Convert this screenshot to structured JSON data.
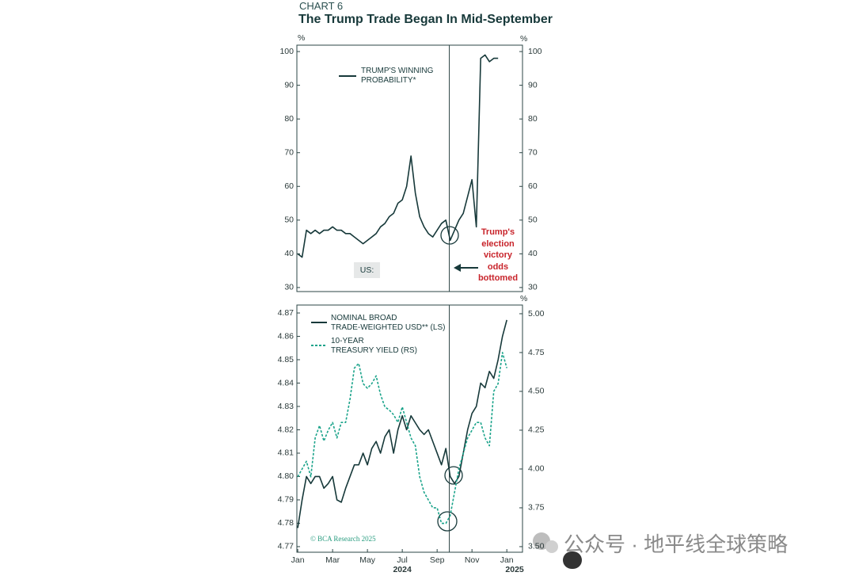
{
  "header": {
    "label": "CHART 6",
    "title": "The Trump Trade Began In Mid-September"
  },
  "chart_data": [
    {
      "type": "line",
      "y_unit": "%",
      "y2_unit": "%",
      "x": [
        0,
        0.25,
        0.5,
        0.75,
        1,
        1.25,
        1.5,
        1.75,
        2,
        2.25,
        2.5,
        2.75,
        3,
        3.25,
        3.5,
        3.75,
        4,
        4.25,
        4.5,
        4.75,
        5,
        5.25,
        5.5,
        5.75,
        6,
        6.25,
        6.5,
        6.75,
        7,
        7.25,
        7.5,
        7.75,
        8,
        8.25,
        8.5,
        8.75,
        9,
        9.25,
        9.5,
        9.75,
        10,
        10.25,
        10.5,
        10.75,
        11,
        11.25,
        11.5,
        11.75,
        12
      ],
      "xlim": [
        -0.05,
        12.9
      ],
      "ylim": [
        28.8,
        101.9
      ],
      "yticks": [
        30,
        40,
        50,
        60,
        70,
        80,
        90,
        100
      ],
      "y2lim": [
        28.8,
        101.9
      ],
      "y2ticks": [
        30,
        40,
        50,
        60,
        70,
        80,
        90,
        100
      ],
      "vline": 8.7,
      "series": [
        {
          "name": "TRUMP'S WINNING\nPROBABILITY*",
          "color": "#17393a",
          "values": [
            40,
            39,
            47,
            46,
            47,
            46,
            47,
            47,
            48,
            47,
            47,
            46,
            46,
            45,
            44,
            43,
            44,
            45,
            46,
            48,
            49,
            51,
            52,
            55,
            56,
            60,
            69,
            58,
            51,
            48,
            46,
            45,
            47,
            49,
            50,
            44,
            47,
            50,
            52,
            57,
            62,
            48,
            98,
            99,
            97,
            98,
            98,
            null,
            null
          ]
        }
      ],
      "region_label": "US:",
      "annotation": "Trump's\nelection\nvictory\nodds\nbottomed",
      "annotation_color": "#c8242b"
    },
    {
      "type": "line",
      "y2_unit": "%",
      "x": [
        0,
        0.25,
        0.5,
        0.75,
        1,
        1.25,
        1.5,
        1.75,
        2,
        2.25,
        2.5,
        2.75,
        3,
        3.25,
        3.5,
        3.75,
        4,
        4.25,
        4.5,
        4.75,
        5,
        5.25,
        5.5,
        5.75,
        6,
        6.25,
        6.5,
        6.75,
        7,
        7.25,
        7.5,
        7.75,
        8,
        8.25,
        8.5,
        8.75,
        9,
        9.25,
        9.5,
        9.75,
        10,
        10.25,
        10.5,
        10.75,
        11,
        11.25,
        11.5,
        11.75,
        12
      ],
      "xlim": [
        -0.05,
        12.9
      ],
      "xticks": [
        {
          "value": 0,
          "label": "Jan"
        },
        {
          "value": 2,
          "label": "Mar"
        },
        {
          "value": 4,
          "label": "May"
        },
        {
          "value": 6,
          "label": "Jul"
        },
        {
          "value": 8,
          "label": "Sep"
        },
        {
          "value": 10,
          "label": "Nov"
        },
        {
          "value": 12,
          "label": "Jan"
        }
      ],
      "year_labels": [
        {
          "value": 6,
          "label": "2024"
        },
        {
          "value": 12.45,
          "label": "2025"
        }
      ],
      "ylim": [
        4.7676,
        4.8734
      ],
      "yticks": [
        4.77,
        4.78,
        4.79,
        {
          "value": 4.8,
          "label": "4.80"
        },
        4.81,
        4.82,
        4.83,
        4.84,
        4.85,
        4.86,
        4.87
      ],
      "y2lim": [
        3.464,
        5.056
      ],
      "y2ticks": [
        {
          "value": 3.5,
          "label": "3.50"
        },
        3.75,
        {
          "value": 4,
          "label": "4.00"
        },
        4.25,
        {
          "value": 4.5,
          "label": "4.50"
        },
        4.75,
        {
          "value": 5,
          "label": "5.00"
        }
      ],
      "vline": 8.7,
      "series": [
        {
          "name": "NOMINAL BROAD\nTRADE-WEIGHTED USD** (LS)",
          "color": "#17393a",
          "dash": false,
          "values": [
            4.778,
            4.79,
            4.8,
            4.797,
            4.8,
            4.8,
            4.795,
            4.797,
            4.8,
            4.79,
            4.789,
            4.795,
            4.8,
            4.805,
            4.805,
            4.81,
            4.805,
            4.812,
            4.815,
            4.81,
            4.817,
            4.82,
            4.81,
            4.82,
            4.826,
            4.82,
            4.826,
            4.823,
            4.82,
            4.818,
            4.82,
            4.815,
            4.81,
            4.805,
            4.812,
            4.8,
            4.797,
            4.8,
            4.81,
            4.82,
            4.827,
            4.83,
            4.84,
            4.838,
            4.845,
            4.842,
            4.85,
            4.86,
            4.867
          ]
        },
        {
          "name": "10-YEAR\nTREASURY YIELD (RS)",
          "color": "#1aa38a",
          "dash": true,
          "axis": "y2",
          "values": [
            3.95,
            4.0,
            4.05,
            3.95,
            4.2,
            4.28,
            4.18,
            4.25,
            4.3,
            4.2,
            4.3,
            4.3,
            4.45,
            4.65,
            4.68,
            4.55,
            4.52,
            4.55,
            4.6,
            4.48,
            4.4,
            4.38,
            4.35,
            4.3,
            4.4,
            4.3,
            4.2,
            4.15,
            3.95,
            3.85,
            3.8,
            3.75,
            3.75,
            3.65,
            3.65,
            3.7,
            3.85,
            4.0,
            4.1,
            4.2,
            4.25,
            4.3,
            4.3,
            4.2,
            4.15,
            4.5,
            4.55,
            4.75,
            4.65
          ]
        }
      ],
      "credit": "© BCA Research 2025"
    }
  ],
  "watermark": "公众号 · 地平线全球策略"
}
